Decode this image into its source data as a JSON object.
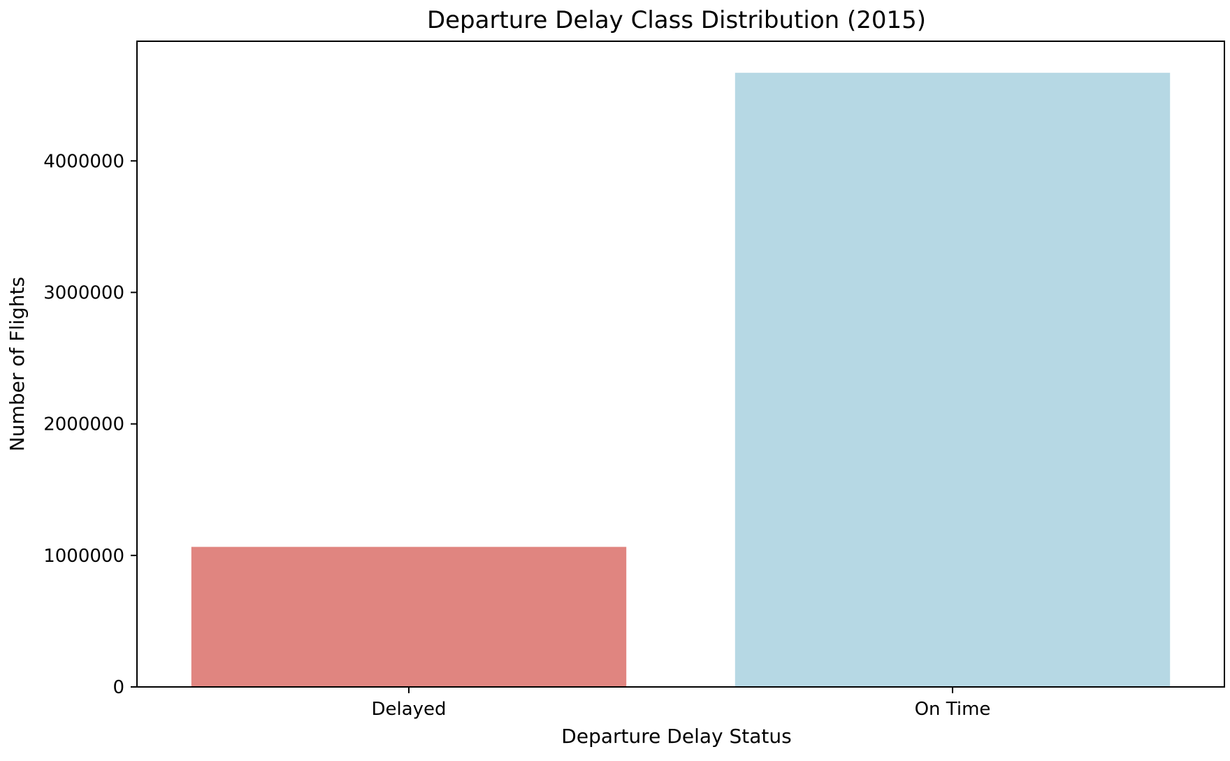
{
  "chart_data": {
    "type": "bar",
    "title": "Departure Delay Class Distribution (2015)",
    "xlabel": "Departure Delay Status",
    "ylabel": "Number of Flights",
    "categories": [
      "Delayed",
      "On Time"
    ],
    "values": [
      1065000,
      4670000
    ],
    "colors": [
      "#e08580",
      "#b6d8e4"
    ],
    "ylim": [
      0,
      4910000
    ],
    "yticks": [
      0,
      1000000,
      2000000,
      3000000,
      4000000
    ],
    "ytick_labels": [
      "0",
      "1000000",
      "2000000",
      "3000000",
      "4000000"
    ],
    "grid": false,
    "legend": "none"
  }
}
